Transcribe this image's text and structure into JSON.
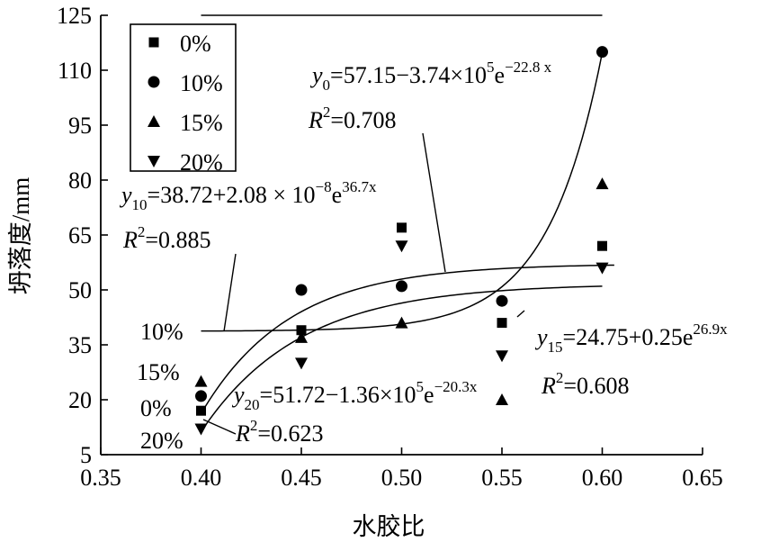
{
  "chart_data": {
    "type": "scatter",
    "xlabel": "水胶比",
    "ylabel": "坍落度/mm",
    "xlim": [
      0.35,
      0.65
    ],
    "ylim": [
      5,
      125
    ],
    "xticks": [
      "0.35",
      "0.40",
      "0.45",
      "0.50",
      "0.55",
      "0.60",
      "0.65"
    ],
    "yticks": [
      "5",
      "20",
      "35",
      "50",
      "65",
      "80",
      "95",
      "110",
      "125"
    ],
    "legend_position": "top-left",
    "series": [
      {
        "name": "0%",
        "marker": "square",
        "x": [
          0.4,
          0.45,
          0.5,
          0.55,
          0.6
        ],
        "y": [
          17,
          39,
          67,
          41,
          62
        ]
      },
      {
        "name": "10%",
        "marker": "circle",
        "x": [
          0.4,
          0.45,
          0.5,
          0.55,
          0.6
        ],
        "y": [
          21,
          50,
          51,
          47,
          115
        ]
      },
      {
        "name": "15%",
        "marker": "triangle-up",
        "x": [
          0.4,
          0.45,
          0.5,
          0.55,
          0.6
        ],
        "y": [
          25,
          37,
          41,
          20,
          79
        ]
      },
      {
        "name": "20%",
        "marker": "triangle-down",
        "x": [
          0.4,
          0.45,
          0.5,
          0.55,
          0.6
        ],
        "y": [
          12,
          30,
          62,
          32,
          56
        ]
      }
    ],
    "curve_labels": [
      "10%",
      "15%",
      "0%",
      "20%"
    ],
    "fits": [
      {
        "series": "0%",
        "sub": "0",
        "a": 57.15,
        "b": -374000,
        "c": -22.8,
        "eq_prefix": "y",
        "eq_mid": "=57.15−3.74×10",
        "eq_exp1": "5",
        "eq_e": "e",
        "eq_exp2": "−22.8 x",
        "r2_prefix": "R",
        "r2_value": "=0.708"
      },
      {
        "series": "10%",
        "sub": "10",
        "a": 38.72,
        "b": 2.08e-08,
        "c": 36.7,
        "eq_prefix": "y",
        "eq_mid": "=38.72+2.08 × 10",
        "eq_exp1": "−8",
        "eq_e": "e",
        "eq_exp2": "36.7x",
        "r2_prefix": "R",
        "r2_value": "=0.885"
      },
      {
        "series": "15%",
        "sub": "15",
        "a": 24.75,
        "b": 0.25,
        "c": 26.9,
        "eq_prefix": "y",
        "eq_mid": "=24.75+0.25e",
        "eq_exp1": "",
        "eq_e": "",
        "eq_exp2": "26.9x",
        "r2_prefix": "R",
        "r2_value": "=0.608"
      },
      {
        "series": "20%",
        "sub": "20",
        "a": 51.72,
        "b": -136000,
        "c": -20.3,
        "eq_prefix": "y",
        "eq_mid": "=51.72−1.36×10",
        "eq_exp1": "5",
        "eq_e": "e",
        "eq_exp2": "−20.3x",
        "r2_prefix": "R",
        "r2_value": "=0.623"
      }
    ],
    "r2_sup": "2"
  }
}
